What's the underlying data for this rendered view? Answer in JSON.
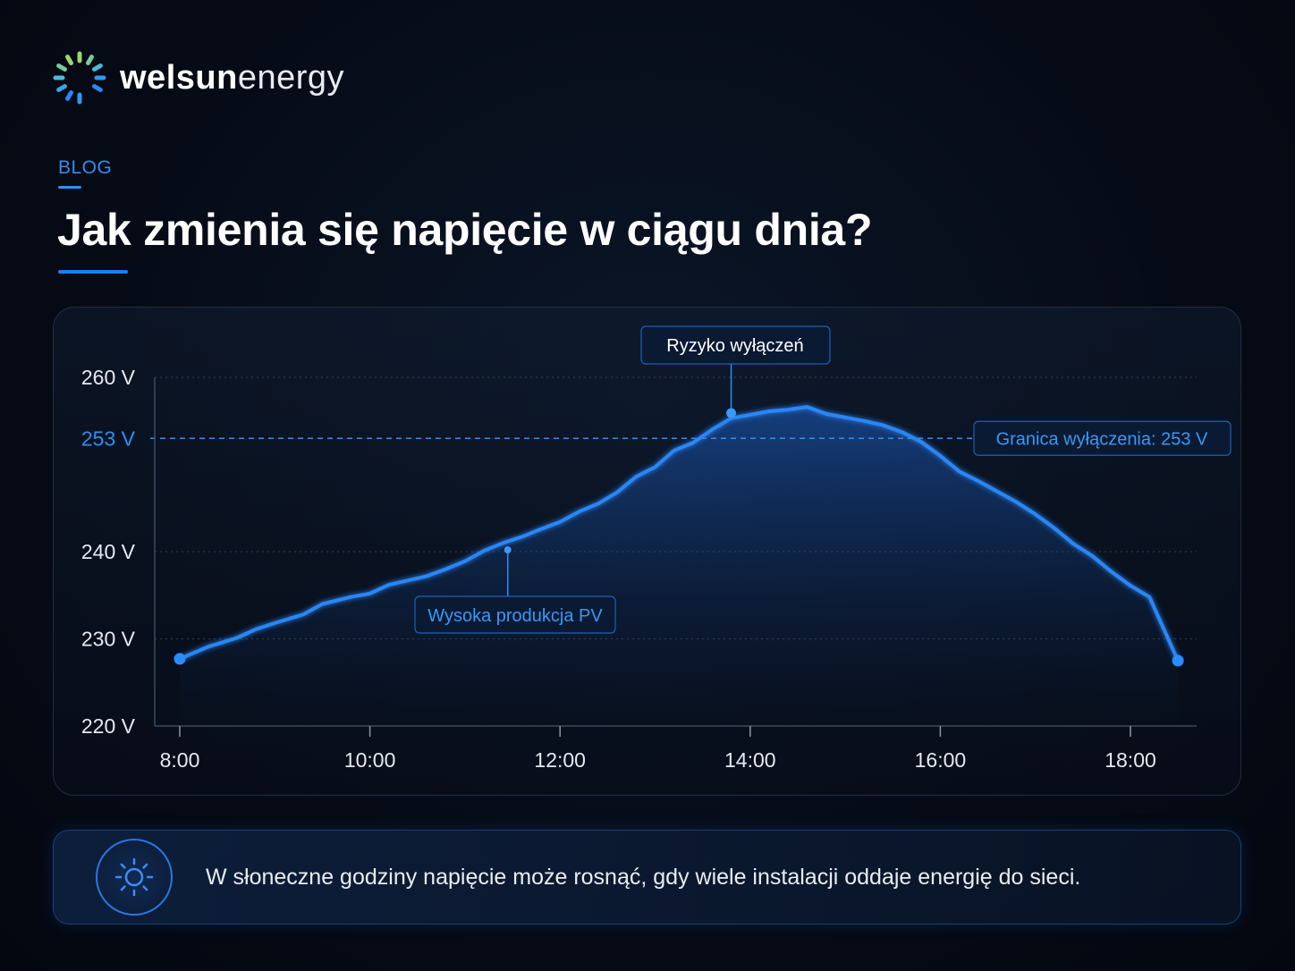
{
  "brand": {
    "name_bold": "welsun",
    "name_light": "energy"
  },
  "header": {
    "tag": "BLOG",
    "title": "Jak zmienia się napięcie w ciągu dnia?"
  },
  "colors": {
    "accent": "#2f8ff0",
    "line": "#2a86f5",
    "background": "#060b16"
  },
  "chart_data": {
    "type": "area",
    "title": "",
    "xlabel": "",
    "ylabel": "",
    "x_ticks": [
      "8:00",
      "10:00",
      "12:00",
      "14:00",
      "16:00",
      "18:00"
    ],
    "y_ticks": [
      "220 V",
      "230 V",
      "240 V",
      "260 V"
    ],
    "xlim": [
      7.75,
      18.7
    ],
    "ylim": [
      220,
      260
    ],
    "grid": true,
    "threshold": {
      "value": 253,
      "tick_label": "253 V",
      "label": "Granica wyłączenia: 253 V"
    },
    "series": [
      {
        "x": [
          8.0,
          8.3,
          8.6,
          8.8,
          9.0,
          9.3,
          9.5,
          9.8,
          10.0,
          10.2,
          10.4,
          10.6,
          10.8,
          11.0,
          11.2,
          11.4,
          11.6,
          11.8,
          12.0,
          12.2,
          12.4,
          12.6,
          12.8,
          13.0,
          13.2,
          13.4,
          13.6,
          13.8,
          14.0,
          14.2,
          14.4,
          14.6,
          14.8,
          15.0,
          15.2,
          15.4,
          15.6,
          15.8,
          16.0,
          16.2,
          16.4,
          16.6,
          16.8,
          17.0,
          17.2,
          17.4,
          17.6,
          17.8,
          18.0,
          18.2,
          18.5
        ],
        "y": [
          227.7,
          229.1,
          230.1,
          231.1,
          231.8,
          232.8,
          234.0,
          234.8,
          235.2,
          236.2,
          236.7,
          237.2,
          238.0,
          238.9,
          240.1,
          241.0,
          241.7,
          242.6,
          243.4,
          244.6,
          245.5,
          246.8,
          248.6,
          249.7,
          251.6,
          252.5,
          254.0,
          255.3,
          255.7,
          256.1,
          256.3,
          256.6,
          255.8,
          255.4,
          255.0,
          254.5,
          253.7,
          252.6,
          251.0,
          249.2,
          248.1,
          246.9,
          245.7,
          244.3,
          242.7,
          240.9,
          239.5,
          237.7,
          236.1,
          234.8,
          227.5
        ]
      }
    ],
    "annotations": [
      {
        "x": 13.8,
        "y": 255.9,
        "label": "Ryzyko wyłączeń"
      },
      {
        "x": 11.45,
        "y": 240.2,
        "label": "Wysoka produkcja PV"
      }
    ]
  },
  "note": {
    "text": "W słoneczne godziny napięcie może rosnąć, gdy wiele instalacji oddaje energię do sieci."
  }
}
